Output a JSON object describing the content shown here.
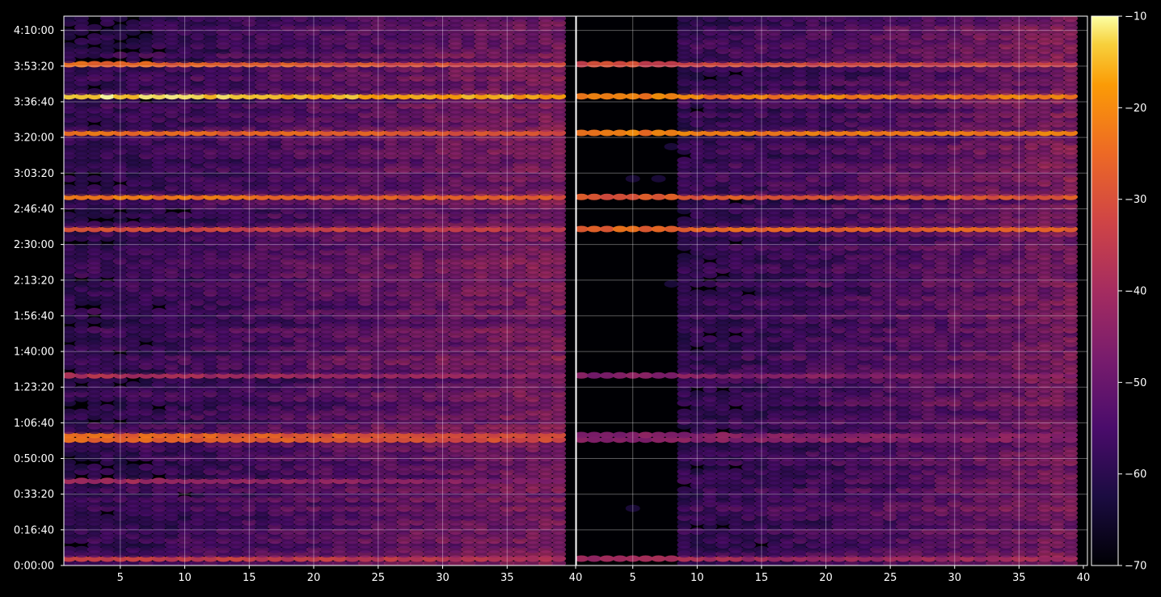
{
  "chart_data": [
    {
      "type": "heatmap",
      "panel": "left",
      "title": "",
      "xlabel": "",
      "ylabel": "",
      "xlim": [
        1,
        40
      ],
      "x_ticks": [
        5,
        10,
        15,
        20,
        25,
        30,
        35,
        40
      ],
      "ylim": [
        0,
        15400
      ],
      "grid": true,
      "bright_rows": [
        {
          "time": "3:40",
          "peak_dB": -11
        },
        {
          "time": "2:53",
          "peak_dB": -22
        },
        {
          "time": "3:22",
          "peak_dB": -24
        },
        {
          "time": "3:54",
          "peak_dB": -26
        },
        {
          "time": "1:00",
          "peak_dB": -25
        },
        {
          "time": "2:37",
          "peak_dB": -30
        },
        {
          "time": "0:04",
          "peak_dB": -32
        },
        {
          "time": "1:28",
          "peak_dB": -38
        },
        {
          "time": "0:40",
          "peak_dB": -40
        }
      ]
    },
    {
      "type": "heatmap",
      "panel": "right",
      "title": "",
      "xlabel": "",
      "ylabel": "",
      "xlim": [
        1,
        40
      ],
      "x_ticks": [
        5,
        10,
        15,
        20,
        25,
        30,
        35,
        40
      ],
      "ylim": [
        0,
        15400
      ],
      "grid": true,
      "bright_rows": [
        {
          "time": "3:40",
          "peak_dB": -22
        },
        {
          "time": "3:22",
          "peak_dB": -22
        },
        {
          "time": "2:53",
          "peak_dB": -28
        },
        {
          "time": "2:37",
          "peak_dB": -26
        },
        {
          "time": "3:54",
          "peak_dB": -32
        },
        {
          "time": "1:00",
          "peak_dB": -45
        },
        {
          "time": "1:28",
          "peak_dB": -45
        },
        {
          "time": "0:04",
          "peak_dB": -40
        }
      ]
    }
  ],
  "y_axis": {
    "ticks": [
      "0:00:00",
      "0:16:40",
      "0:33:20",
      "0:50:00",
      "1:06:40",
      "1:23:20",
      "1:40:00",
      "1:56:40",
      "2:13:20",
      "2:30:00",
      "2:46:40",
      "3:03:20",
      "3:20:00",
      "3:36:40",
      "3:53:20",
      "4:10:00"
    ]
  },
  "colorbar": {
    "colormap": "inferno",
    "range": [
      -70,
      -10
    ],
    "ticks": [
      "−70",
      "−60",
      "−50",
      "−40",
      "−30",
      "−20",
      "−10"
    ]
  }
}
